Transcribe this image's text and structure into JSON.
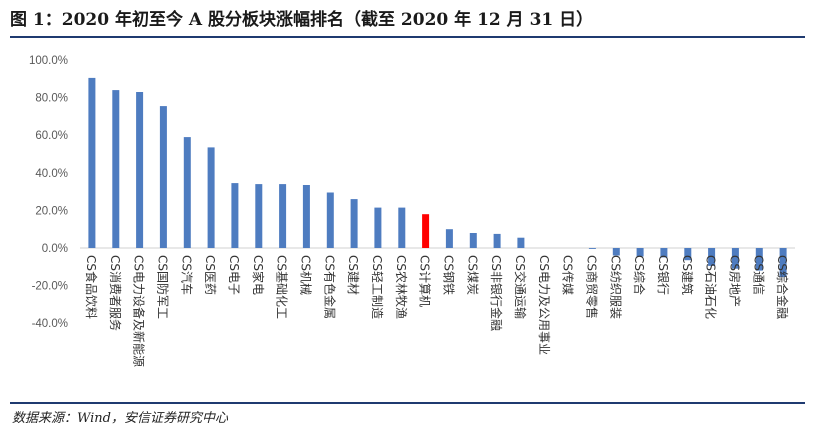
{
  "title": "图 1：2020 年初至今 A 股分板块涨幅排名（截至 2020 年 12 月 31 日）",
  "source": "数据来源：Wind，安信证券研究中心",
  "chart_data": {
    "type": "bar",
    "categories": [
      "CS食品饮料",
      "CS消费者服务",
      "CS电力设备及新能源",
      "CS国防军工",
      "CS汽车",
      "CS医药",
      "CS电子",
      "CS家电",
      "CS基础化工",
      "CS机械",
      "CS有色金属",
      "CS建材",
      "CS轻工制造",
      "CS农林牧渔",
      "CS计算机",
      "CS钢铁",
      "CS煤炭",
      "CS非银行金融",
      "CS交通运输",
      "CS电力及公用事业",
      "CS传媒",
      "CS商贸零售",
      "CS纺织服装",
      "CS综合",
      "CS银行",
      "CS建筑",
      "CS石油石化",
      "CS房地产",
      "CS通信",
      "CS综合金融"
    ],
    "values": [
      90.5,
      84.0,
      83.0,
      75.5,
      59.0,
      53.5,
      34.5,
      34.0,
      34.0,
      33.5,
      29.5,
      26.0,
      21.5,
      21.5,
      18.0,
      10.0,
      8.0,
      7.5,
      5.5,
      0.0,
      0.0,
      -0.5,
      -4.0,
      -4.5,
      -5.0,
      -6.5,
      -9.5,
      -11.0,
      -12.0,
      -15.5
    ],
    "highlight": "CS计算机",
    "colors": {
      "bar": "#4e7cc0",
      "highlight": "#ff0000",
      "axis": "#d0d0d0",
      "tick_text": "#595959",
      "category_text": "#333333"
    },
    "yticks": [
      "100.0%",
      "80.0%",
      "60.0%",
      "40.0%",
      "20.0%",
      "0.0%",
      "-20.0%",
      "-40.0%"
    ],
    "ylim": [
      -40,
      100
    ],
    "xlabel": "",
    "ylabel": "",
    "grid": false,
    "legend": "none"
  }
}
